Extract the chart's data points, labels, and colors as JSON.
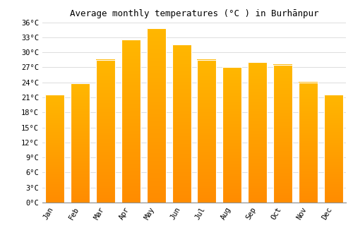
{
  "title": "Average monthly temperatures (°C ) in Burhānpur",
  "months": [
    "Jan",
    "Feb",
    "Mar",
    "Apr",
    "May",
    "Jun",
    "Jul",
    "Aug",
    "Sep",
    "Oct",
    "Nov",
    "Dec"
  ],
  "values": [
    21.5,
    23.8,
    28.5,
    32.5,
    34.8,
    31.5,
    28.5,
    27.0,
    28.0,
    27.5,
    24.0,
    21.5
  ],
  "bar_color_top": "#FFB700",
  "bar_color_bottom": "#FF8C00",
  "background_color": "#ffffff",
  "grid_color": "#dddddd",
  "ylim": [
    0,
    36
  ],
  "yticks": [
    0,
    3,
    6,
    9,
    12,
    15,
    18,
    21,
    24,
    27,
    30,
    33,
    36
  ],
  "ytick_labels": [
    "0°C",
    "3°C",
    "6°C",
    "9°C",
    "12°C",
    "15°C",
    "18°C",
    "21°C",
    "24°C",
    "27°C",
    "30°C",
    "33°C",
    "36°C"
  ],
  "title_fontsize": 9,
  "tick_fontsize": 7.5,
  "font_family": "monospace",
  "bar_width": 0.75
}
